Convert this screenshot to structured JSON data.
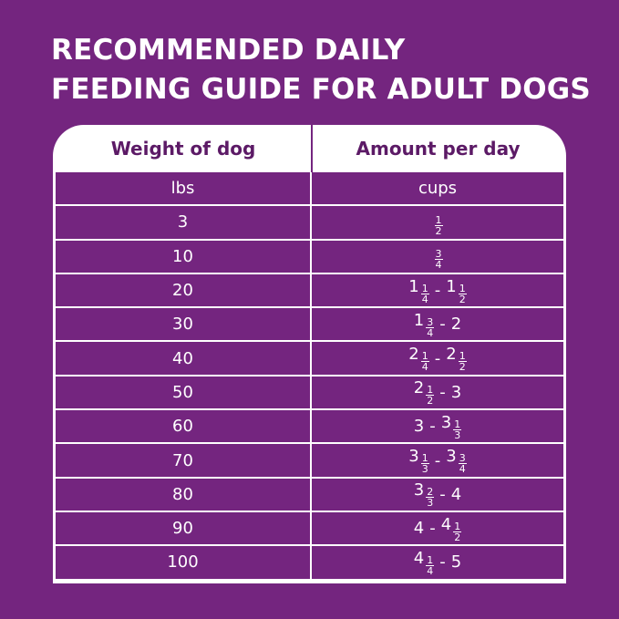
{
  "title": {
    "line1": "RECOMMENDED DAILY",
    "line2": "FEEDING GUIDE FOR ADULT DOGS"
  },
  "colors": {
    "background": "#74257f",
    "header_text": "#5c1a66",
    "table_border": "#ffffff"
  },
  "table": {
    "headers": [
      "Weight of dog",
      "Amount per day"
    ],
    "units": [
      "lbs",
      "cups"
    ],
    "rows": [
      {
        "weight": "3",
        "from": {
          "whole": "",
          "num": "1",
          "den": "2"
        },
        "to": null
      },
      {
        "weight": "10",
        "from": {
          "whole": "",
          "num": "3",
          "den": "4"
        },
        "to": null
      },
      {
        "weight": "20",
        "from": {
          "whole": "1",
          "num": "1",
          "den": "4"
        },
        "to": {
          "whole": "1",
          "num": "1",
          "den": "2"
        }
      },
      {
        "weight": "30",
        "from": {
          "whole": "1",
          "num": "3",
          "den": "4"
        },
        "to": {
          "whole": "2",
          "num": "",
          "den": ""
        }
      },
      {
        "weight": "40",
        "from": {
          "whole": "2",
          "num": "1",
          "den": "4"
        },
        "to": {
          "whole": "2",
          "num": "1",
          "den": "2"
        }
      },
      {
        "weight": "50",
        "from": {
          "whole": "2",
          "num": "1",
          "den": "2"
        },
        "to": {
          "whole": "3",
          "num": "",
          "den": ""
        }
      },
      {
        "weight": "60",
        "from": {
          "whole": "3",
          "num": "",
          "den": ""
        },
        "to": {
          "whole": "3",
          "num": "1",
          "den": "3"
        }
      },
      {
        "weight": "70",
        "from": {
          "whole": "3",
          "num": "1",
          "den": "3"
        },
        "to": {
          "whole": "3",
          "num": "3",
          "den": "4"
        }
      },
      {
        "weight": "80",
        "from": {
          "whole": "3",
          "num": "2",
          "den": "3"
        },
        "to": {
          "whole": "4",
          "num": "",
          "den": ""
        }
      },
      {
        "weight": "90",
        "from": {
          "whole": "4",
          "num": "",
          "den": ""
        },
        "to": {
          "whole": "4",
          "num": "1",
          "den": "2"
        }
      },
      {
        "weight": "100",
        "from": {
          "whole": "4",
          "num": "1",
          "den": "4"
        },
        "to": {
          "whole": "5",
          "num": "",
          "den": ""
        }
      }
    ],
    "range_separator": "-"
  }
}
